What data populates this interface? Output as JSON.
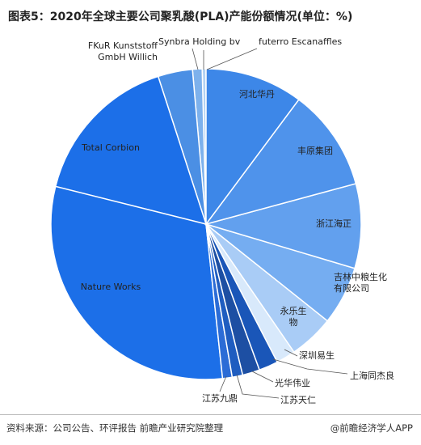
{
  "chart_data": {
    "type": "pie",
    "title": "图表5：2020年全球主要公司聚乳酸(PLA)产能份额情况(单位：%)",
    "categories": [
      "河北华丹",
      "丰原集团",
      "浙江海正",
      "吉林中粮生化有限公司",
      "永乐生物",
      "深圳易生",
      "上海同杰良",
      "光华伟业",
      "江苏天仁",
      "江苏九鼎",
      "Nature Works",
      "Total Corbion",
      "FKuR Kunststoff GmbH Willich",
      "Synbra Holding bv",
      "futerro Escanaffles"
    ],
    "values": [
      10.2,
      10.6,
      8.8,
      6.1,
      4.7,
      2.0,
      2.0,
      1.8,
      1.1,
      1.0,
      30.6,
      16.1,
      3.6,
      1.0,
      0.4
    ],
    "colors": [
      "#3d87e8",
      "#4f93eb",
      "#62a0ee",
      "#75adf1",
      "#a9ccf6",
      "#d8e9fb",
      "#1a56b8",
      "#1d4fa3",
      "#1f5dc0",
      "#2b6cd6",
      "#1c6fe8",
      "#1c6fe8",
      "#4b8fe4",
      "#7db1ec",
      "#b3d2f3"
    ],
    "source": "资料来源：公司公告、环评报告 前瞻产业研究院整理",
    "credit": "@前瞻经济学人APP"
  }
}
